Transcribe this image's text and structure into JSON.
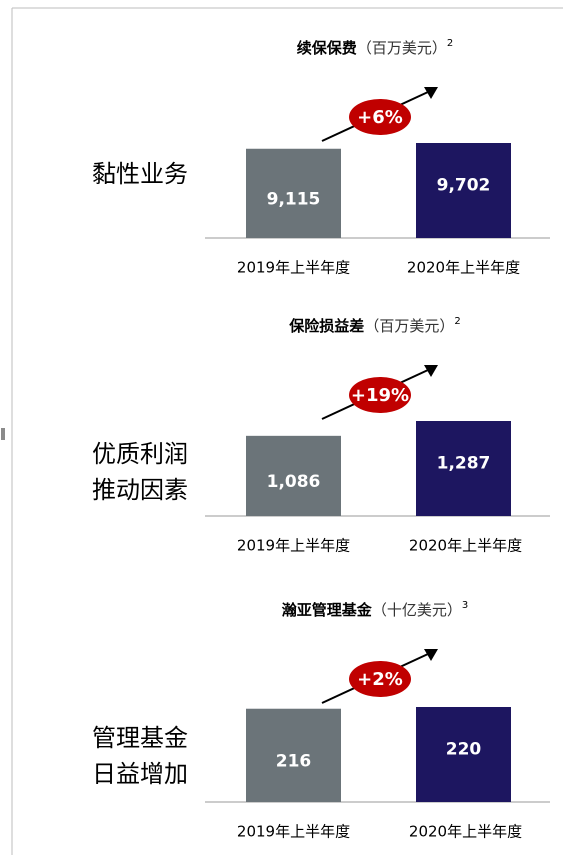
{
  "chart_data": [
    {
      "type": "bar",
      "title": "续保保费",
      "unit": "（百万美元）",
      "note": "2",
      "label_lines": [
        "黏性业务"
      ],
      "categories": [
        "2019年上半年度",
        "2020年上半年度"
      ],
      "values": [
        9115,
        9702
      ],
      "value_labels": [
        "9,115",
        "9,702"
      ],
      "colors": [
        "#6b7479",
        "#1d1660"
      ],
      "annotation": "+6%",
      "annotation_color": "#c00000"
    },
    {
      "type": "bar",
      "title": "保险损益差",
      "unit": "（百万美元）",
      "note": "2",
      "label_lines": [
        "优质利润",
        "推动因素"
      ],
      "categories": [
        "2019年上半年度",
        "2020年上半年度"
      ],
      "values": [
        1086,
        1287
      ],
      "value_labels": [
        "1,086",
        "1,287"
      ],
      "colors": [
        "#6b7479",
        "#1d1660"
      ],
      "annotation": "+19%",
      "annotation_color": "#c00000"
    },
    {
      "type": "bar",
      "title": "瀚亚管理基金",
      "unit": "（十亿美元）",
      "note": "3",
      "label_lines": [
        "管理基金",
        "日益增加"
      ],
      "categories": [
        "2019年上半年度",
        "2020年上半年度"
      ],
      "values": [
        216,
        220
      ],
      "colors": [
        "#6b7479",
        "#1d1660"
      ],
      "annotation": "+2%",
      "annotation_color": "#c00000"
    }
  ]
}
